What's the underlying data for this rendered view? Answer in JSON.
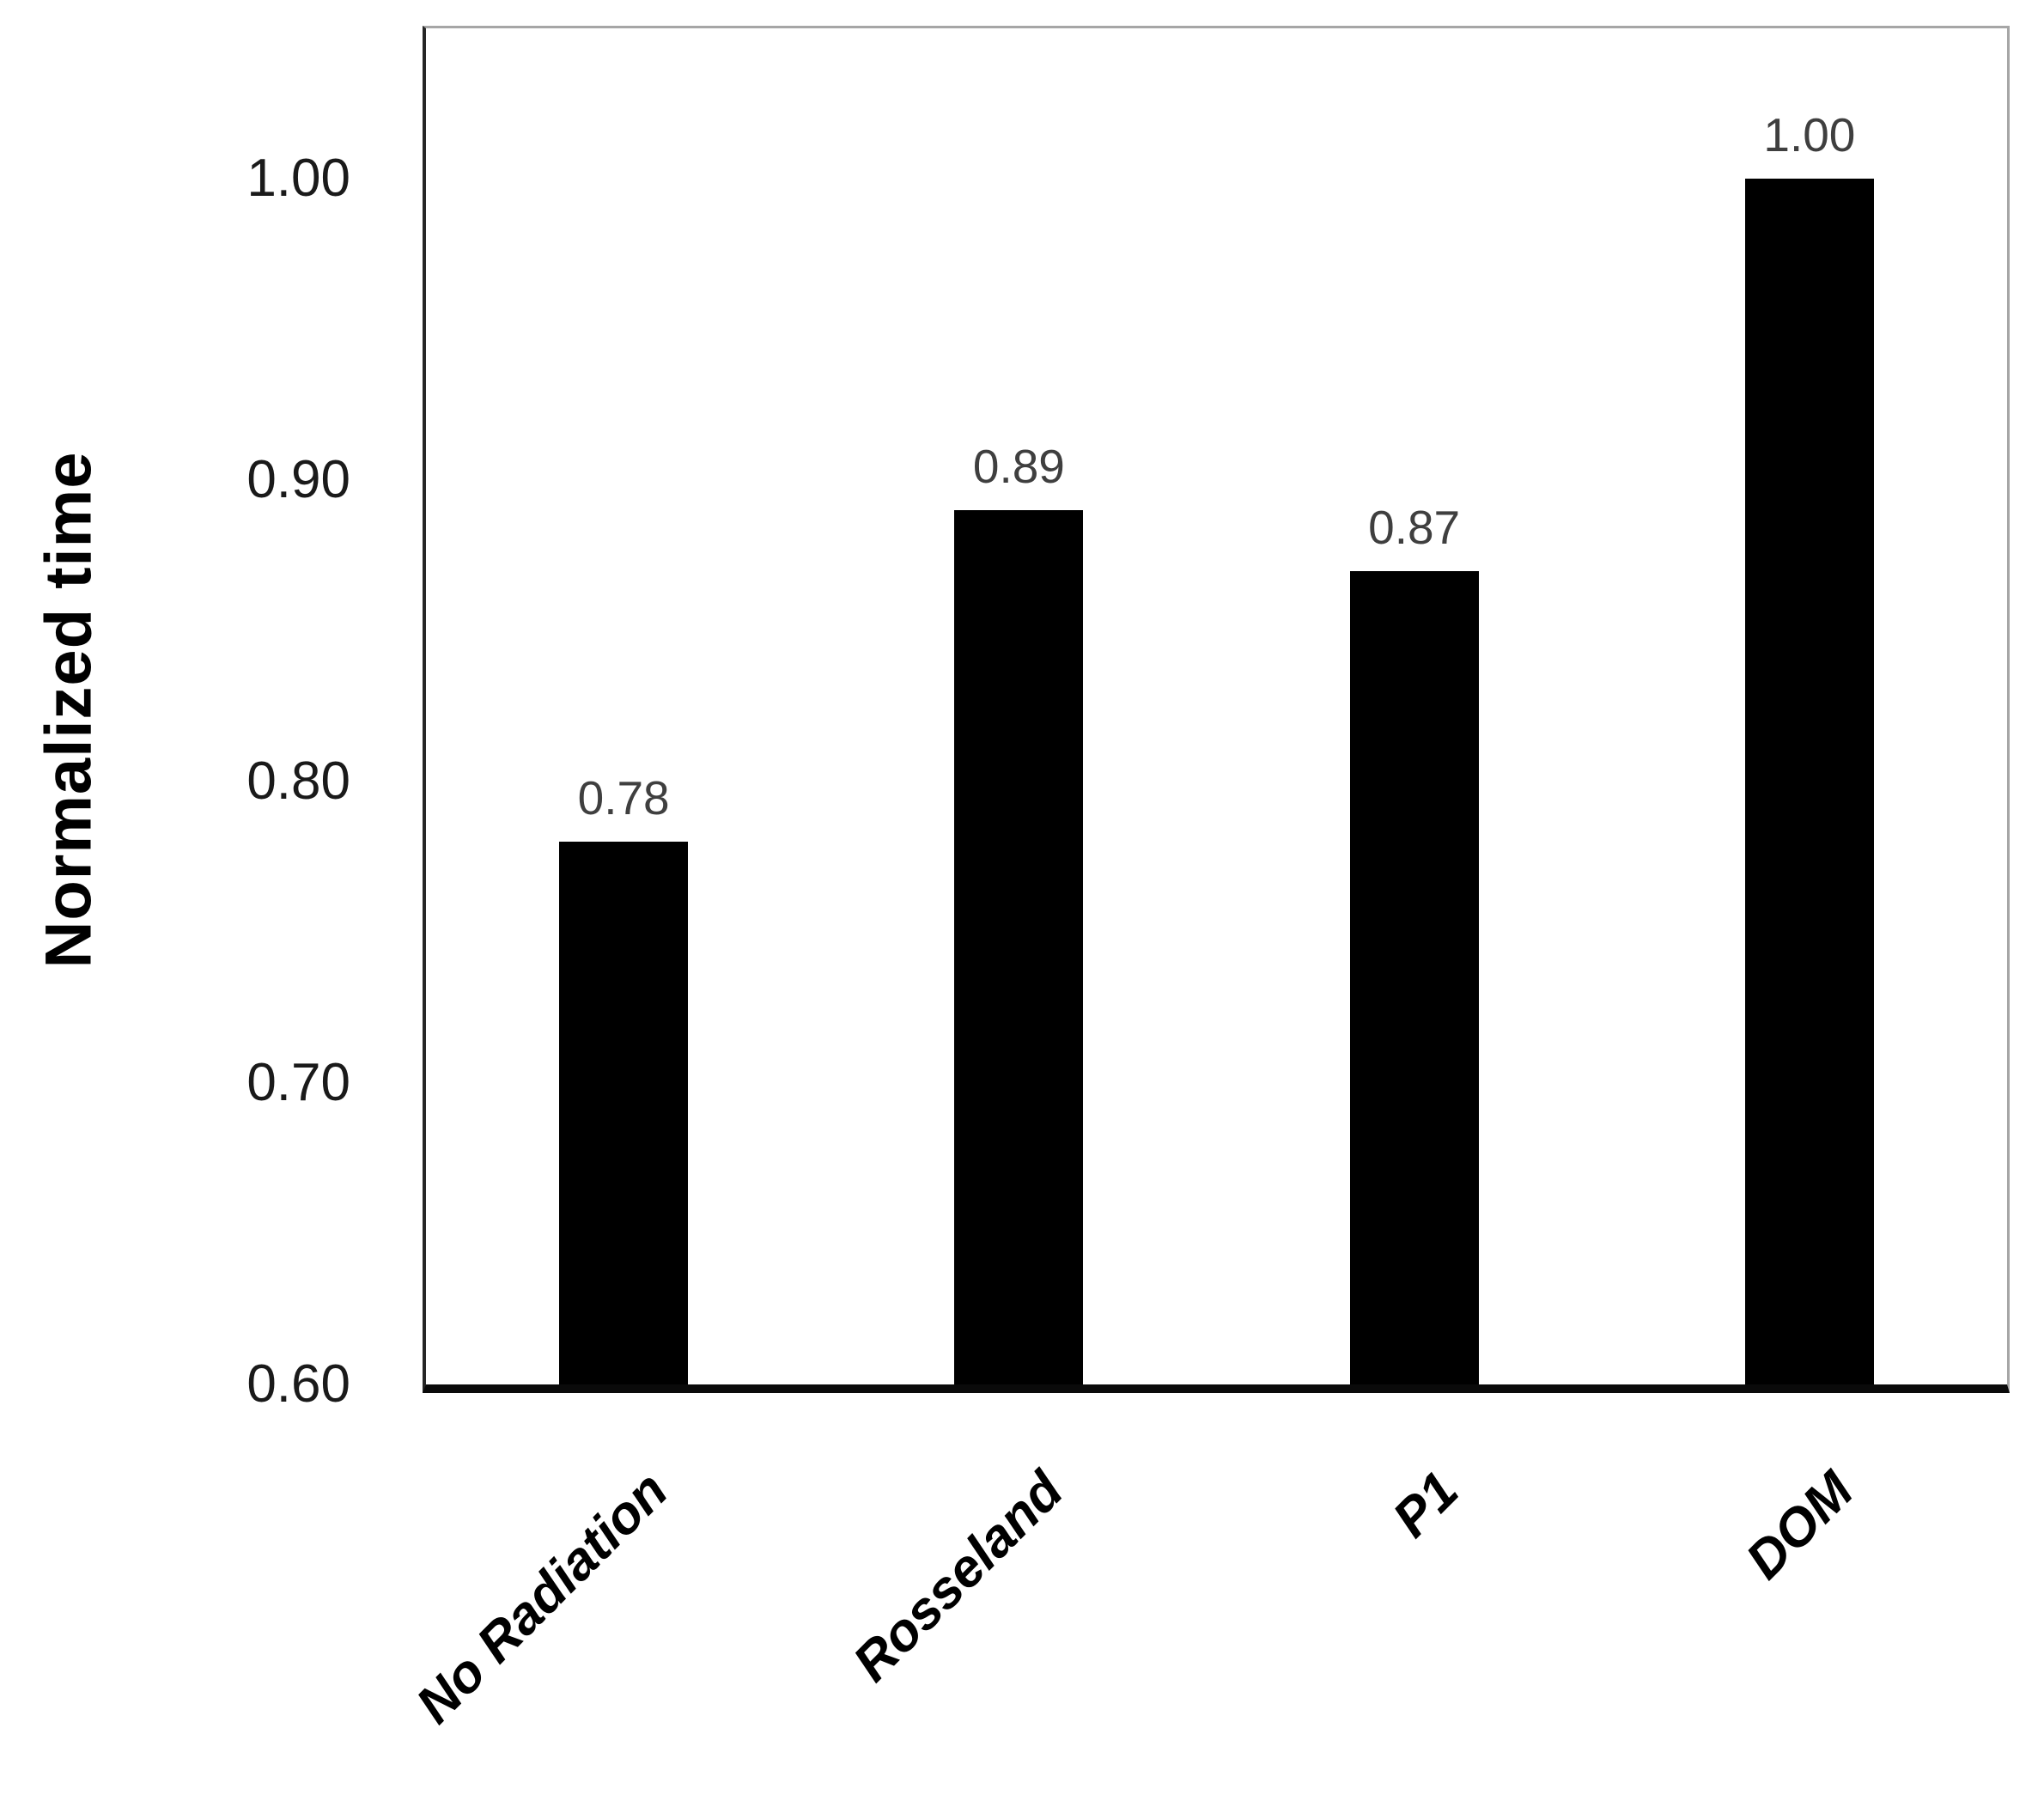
{
  "chart_data": {
    "type": "bar",
    "title": "",
    "categories": [
      "No Radiation",
      "Rosseland",
      "P1",
      "DOM"
    ],
    "values": [
      0.78,
      0.89,
      0.87,
      1.0
    ],
    "bar_labels": [
      "0.78",
      "0.89",
      "0.87",
      "1.00"
    ],
    "xlabel": "",
    "ylabel": "Normalized time",
    "ylim": [
      0.6,
      1.05
    ],
    "yticks": [
      0.6,
      0.7,
      0.8,
      0.9,
      1.0
    ],
    "ytick_labels": [
      "0.60",
      "0.70",
      "0.80",
      "0.90",
      "1.00"
    ],
    "grid": false,
    "legend": false,
    "bar_color": "#000000",
    "data_label_color": "#3f3f3f",
    "ytick_label_color": "#1a1a1a",
    "xtick_label_color": "#000000",
    "axis_line_color": "#0a0a0a",
    "plot_border_color": "#a6a6a6"
  }
}
